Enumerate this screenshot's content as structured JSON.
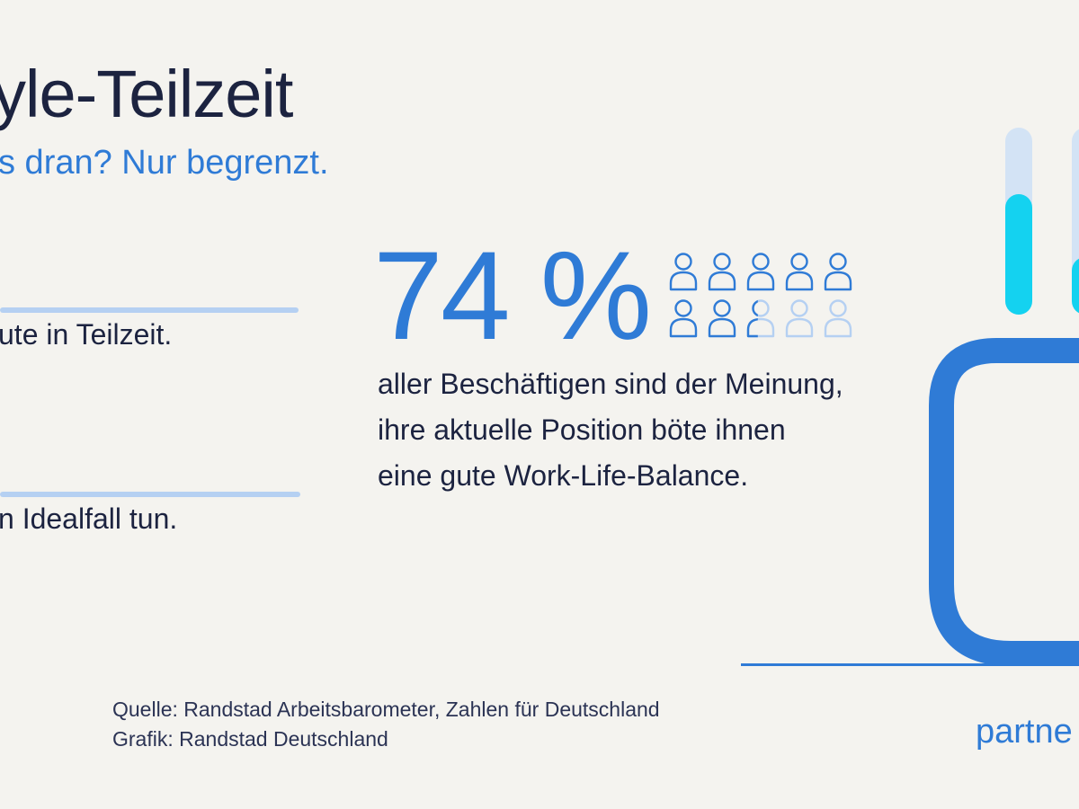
{
  "header": {
    "title": "yle-Teilzeit",
    "subtitle": "s dran? Nur begrenzt."
  },
  "stats": [
    {
      "text": "ute in Teilzeit."
    },
    {
      "text": "n Idealfall tun."
    }
  ],
  "highlight": {
    "value": "74 %",
    "percent": 74,
    "description": "aller Beschäftigen sind der Meinung, ihre aktuelle Position böte ihnen eine gute Work-Life-Balance.",
    "icon_name": "person-icon",
    "icons_total": 10,
    "icons_filled": 7.4
  },
  "footer": {
    "source": "Quelle: Randstad Arbeitsbarometer, Zahlen für Deutschland",
    "graphic": "Grafik: Randstad Deutschland",
    "partner": "partne"
  },
  "colors": {
    "background": "#f4f3ef",
    "navy": "#1c2340",
    "blue": "#2f7bd6",
    "light_blue": "#b5d0f2",
    "cyan": "#14d2f0",
    "pale_blue": "#d3e3f5"
  }
}
